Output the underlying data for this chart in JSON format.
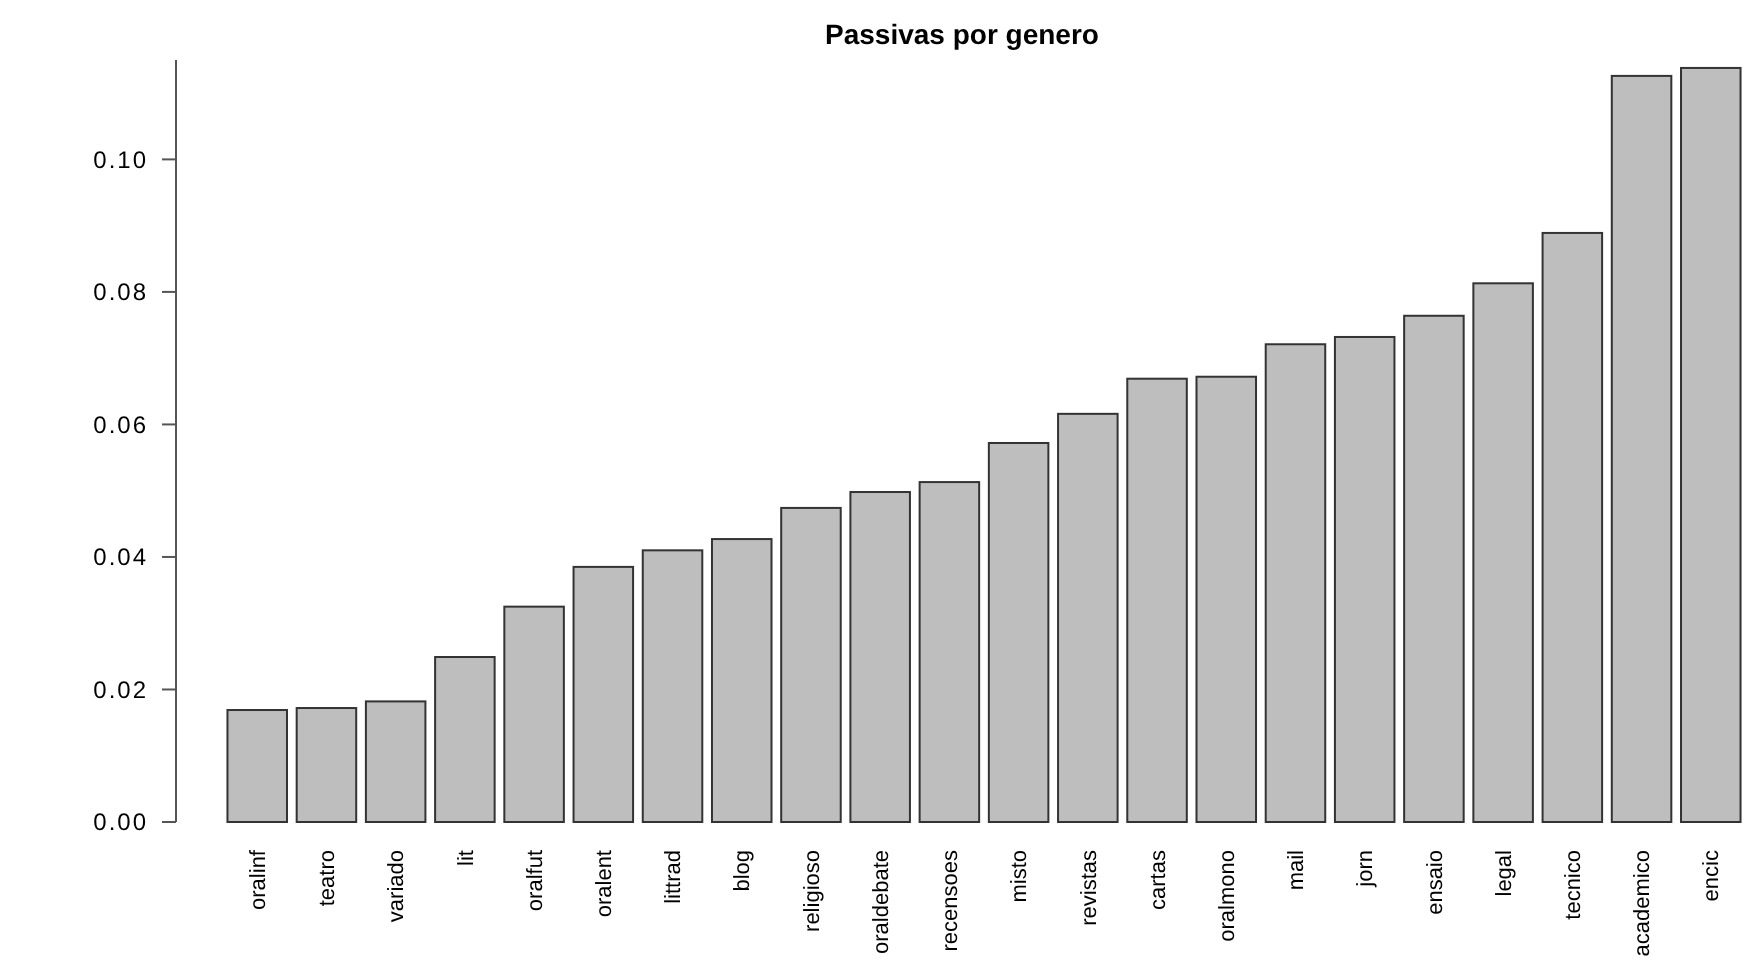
{
  "chart_data": {
    "type": "bar",
    "title": "Passivas por genero",
    "categories": [
      "oralinf",
      "teatro",
      "variado",
      "lit",
      "oralfut",
      "oralent",
      "littrad",
      "blog",
      "religioso",
      "oraldebate",
      "recensoes",
      "misto",
      "revistas",
      "cartas",
      "oralmono",
      "mail",
      "jorn",
      "ensaio",
      "legal",
      "tecnico",
      "academico",
      "encic"
    ],
    "values": [
      0.0169,
      0.0172,
      0.0182,
      0.0249,
      0.0325,
      0.0385,
      0.041,
      0.0427,
      0.0474,
      0.0498,
      0.0513,
      0.0572,
      0.0616,
      0.0669,
      0.0672,
      0.0721,
      0.0732,
      0.0764,
      0.0813,
      0.0889,
      0.1126,
      0.1138
    ],
    "color": "#bebebe",
    "ylim": [
      0,
      0.115
    ],
    "yticks": [
      {
        "value": 0,
        "label": "0.00"
      },
      {
        "value": 0.02,
        "label": "0.02"
      },
      {
        "value": 0.04,
        "label": "0.04"
      },
      {
        "value": 0.06,
        "label": "0.06"
      },
      {
        "value": 0.08,
        "label": "0.08"
      },
      {
        "value": 0.1,
        "label": "0.10"
      }
    ],
    "grid": false
  }
}
